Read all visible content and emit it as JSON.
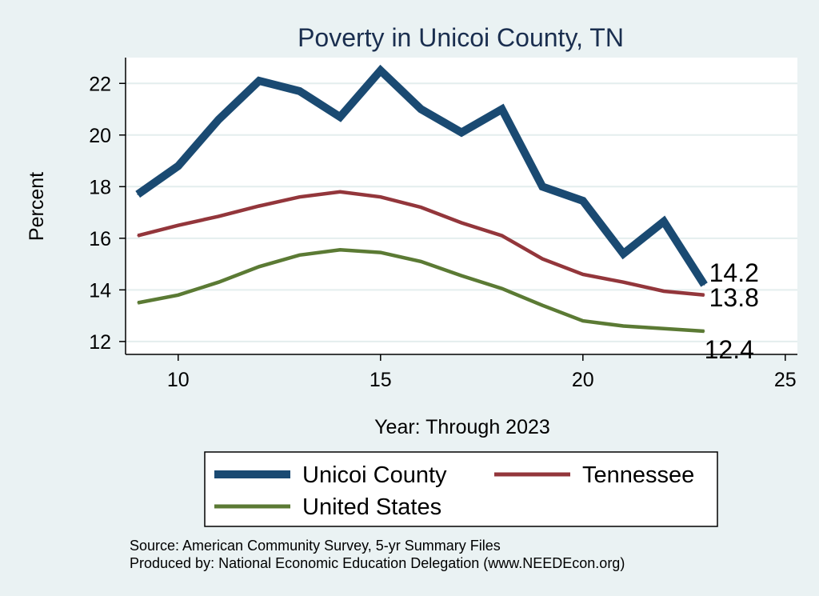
{
  "chart_data": {
    "type": "line",
    "title": "Poverty in Unicoi County, TN",
    "xlabel": "Year: Through 2023",
    "ylabel": "Percent",
    "xlim": [
      8.7,
      25.3
    ],
    "ylim": [
      11.5,
      23.0
    ],
    "xticks": [
      10,
      15,
      20,
      25
    ],
    "yticks": [
      12,
      14,
      16,
      18,
      20,
      22
    ],
    "grid": true,
    "legend_position": "bottom",
    "series": [
      {
        "name": "Unicoi County",
        "color": "#1a4a72",
        "x": [
          9,
          10,
          11,
          12,
          13,
          14,
          15,
          16,
          17,
          18,
          19,
          20,
          21,
          22,
          23
        ],
        "y": [
          17.7,
          18.8,
          20.6,
          22.1,
          21.7,
          20.7,
          22.5,
          21.0,
          20.1,
          21.0,
          18.0,
          17.45,
          15.4,
          16.65,
          14.2
        ],
        "end_label": "14.2"
      },
      {
        "name": "Tennessee",
        "color": "#93363b",
        "x": [
          9,
          10,
          11,
          12,
          13,
          14,
          15,
          16,
          17,
          18,
          19,
          20,
          21,
          22,
          23
        ],
        "y": [
          16.1,
          16.5,
          16.85,
          17.25,
          17.6,
          17.8,
          17.6,
          17.2,
          16.6,
          16.1,
          15.2,
          14.6,
          14.3,
          13.95,
          13.8
        ],
        "end_label": "13.8"
      },
      {
        "name": "United States",
        "color": "#5b7a34",
        "x": [
          9,
          10,
          11,
          12,
          13,
          14,
          15,
          16,
          17,
          18,
          19,
          20,
          21,
          22,
          23
        ],
        "y": [
          13.5,
          13.8,
          14.3,
          14.9,
          15.35,
          15.55,
          15.45,
          15.1,
          14.55,
          14.05,
          13.4,
          12.8,
          12.6,
          12.5,
          12.4
        ],
        "end_label": "12.4"
      }
    ]
  },
  "notes": {
    "source": "Source: American Community Survey, 5-yr Summary Files",
    "produced": "Produced by: National Economic Education Delegation (www.NEEDEcon.org)"
  }
}
